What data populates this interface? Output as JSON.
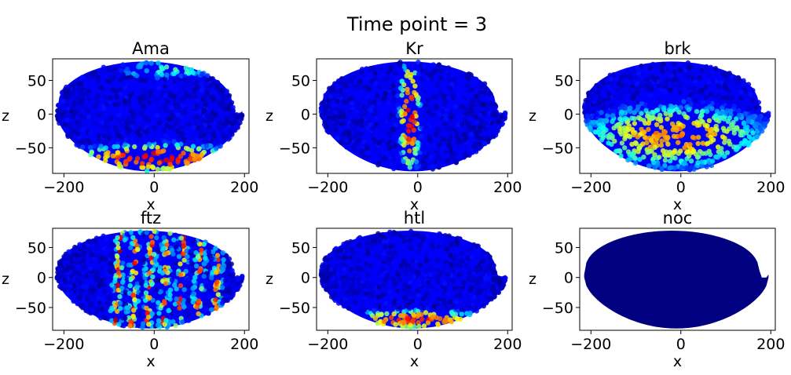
{
  "figure": {
    "suptitle": "Time point = 3"
  },
  "chart_data": [
    {
      "type": "scatter",
      "title": "Ama",
      "xlabel": "x",
      "ylabel": "z",
      "xlim": [
        -225,
        210
      ],
      "ylim": [
        -88,
        82
      ],
      "xticks": [
        -200,
        0,
        200
      ],
      "yticks": [
        50,
        0,
        -50
      ],
      "xtick_labels": [
        "−200",
        "0",
        "200"
      ],
      "ytick_labels": [
        "50",
        "0",
        "−50"
      ],
      "pattern": "ventral-band",
      "colormap": "jet",
      "bands": [
        {
          "x": [
            -175,
            180
          ],
          "z": [
            -85,
            -45
          ],
          "intensity": 0.9
        },
        {
          "x": [
            -60,
            140
          ],
          "z": [
            55,
            80
          ],
          "intensity": 0.45
        }
      ]
    },
    {
      "type": "scatter",
      "title": "Kr",
      "xlabel": "x",
      "ylabel": "z",
      "xlim": [
        -225,
        210
      ],
      "ylim": [
        -88,
        82
      ],
      "xticks": [
        -200,
        0,
        200
      ],
      "yticks": [
        50,
        0,
        -50
      ],
      "xtick_labels": [
        "−200",
        "0",
        "200"
      ],
      "ytick_labels": [
        "50",
        "0",
        "−50"
      ],
      "pattern": "central-stripe",
      "colormap": "jet",
      "bands": [
        {
          "x": [
            -40,
            5
          ],
          "z": [
            -85,
            80
          ],
          "intensity": 0.9
        }
      ]
    },
    {
      "type": "scatter",
      "title": "brk",
      "xlabel": "x",
      "ylabel": "z",
      "xlim": [
        -225,
        210
      ],
      "ylim": [
        -88,
        82
      ],
      "xticks": [
        -200,
        0,
        200
      ],
      "yticks": [
        50,
        0,
        -50
      ],
      "xtick_labels": [
        "−200",
        "0",
        "200"
      ],
      "ytick_labels": [
        "50",
        "0",
        "−50"
      ],
      "pattern": "lateral-crescent",
      "colormap": "jet",
      "bands": [
        {
          "x": [
            -200,
            170
          ],
          "z": [
            -75,
            10
          ],
          "intensity": 0.75
        }
      ]
    },
    {
      "type": "scatter",
      "title": "ftz",
      "xlabel": "x",
      "ylabel": "z",
      "xlim": [
        -225,
        210
      ],
      "ylim": [
        -88,
        82
      ],
      "xticks": [
        -200,
        0,
        200
      ],
      "yticks": [
        50,
        0,
        -50
      ],
      "xtick_labels": [
        "−200",
        "0",
        "200"
      ],
      "ytick_labels": [
        "50",
        "0",
        "−50"
      ],
      "pattern": "seven-stripes",
      "colormap": "jet",
      "stripe_centers_x": [
        -80,
        -45,
        -10,
        25,
        60,
        100,
        140
      ],
      "stripe_intensity": 0.9
    },
    {
      "type": "scatter",
      "title": "htl",
      "xlabel": "x",
      "ylabel": "z",
      "xlim": [
        -225,
        210
      ],
      "ylim": [
        -88,
        82
      ],
      "xticks": [
        -200,
        0,
        200
      ],
      "yticks": [
        50,
        0,
        -50
      ],
      "xtick_labels": [
        "−200",
        "0",
        "200"
      ],
      "ytick_labels": [
        "50",
        "0",
        "−50"
      ],
      "pattern": "ventral-band",
      "colormap": "jet",
      "bands": [
        {
          "x": [
            -150,
            140
          ],
          "z": [
            -85,
            -55
          ],
          "intensity": 0.85
        }
      ]
    },
    {
      "type": "scatter",
      "title": "noc",
      "xlabel": "x",
      "ylabel": "z",
      "xlim": [
        -225,
        210
      ],
      "ylim": [
        -88,
        82
      ],
      "xticks": [
        -200,
        0,
        200
      ],
      "yticks": [
        50,
        0,
        -50
      ],
      "xtick_labels": [
        "−200",
        "0",
        "200"
      ],
      "ytick_labels": [
        "50",
        "0",
        "−50"
      ],
      "pattern": "uniform-zero",
      "colormap": "jet",
      "bands": []
    }
  ]
}
